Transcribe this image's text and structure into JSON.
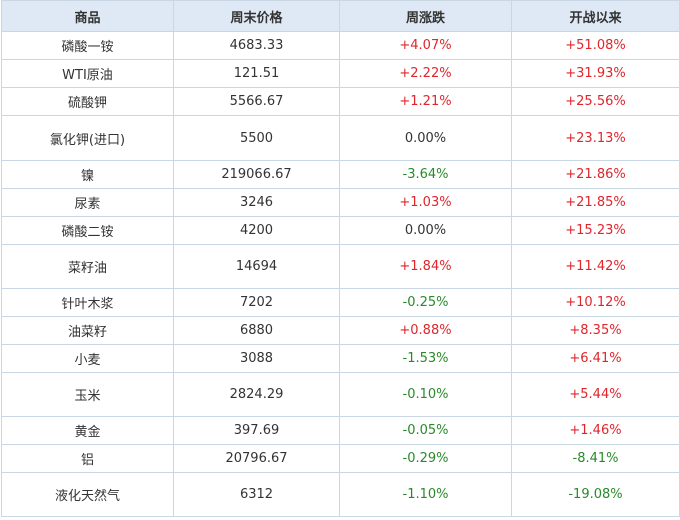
{
  "table": {
    "headers": [
      "商品",
      "周末价格",
      "周涨跌",
      "开战以来"
    ],
    "rows": [
      {
        "name": "磷酸一铵",
        "price": "4683.33",
        "week": "+4.07%",
        "since": "+51.08%"
      },
      {
        "name": "WTI原油",
        "price": "121.51",
        "week": "+2.22%",
        "since": "+31.93%"
      },
      {
        "name": "硫酸钾",
        "price": "5566.67",
        "week": "+1.21%",
        "since": "+25.56%"
      },
      {
        "name": "氯化钾(进口)",
        "price": "5500",
        "week": "0.00%",
        "since": "+23.13%"
      },
      {
        "name": "镍",
        "price": "219066.67",
        "week": "-3.64%",
        "since": "+21.86%"
      },
      {
        "name": "尿素",
        "price": "3246",
        "week": "+1.03%",
        "since": "+21.85%"
      },
      {
        "name": "磷酸二铵",
        "price": "4200",
        "week": "0.00%",
        "since": "+15.23%"
      },
      {
        "name": "菜籽油",
        "price": "14694",
        "week": "+1.84%",
        "since": "+11.42%"
      },
      {
        "name": "针叶木浆",
        "price": "7202",
        "week": "-0.25%",
        "since": "+10.12%"
      },
      {
        "name": "油菜籽",
        "price": "6880",
        "week": "+0.88%",
        "since": "+8.35%"
      },
      {
        "name": "小麦",
        "price": "3088",
        "week": "-1.53%",
        "since": "+6.41%"
      },
      {
        "name": "玉米",
        "price": "2824.29",
        "week": "-0.10%",
        "since": "+5.44%"
      },
      {
        "name": "黄金",
        "price": "397.69",
        "week": "-0.05%",
        "since": "+1.46%"
      },
      {
        "name": "铝",
        "price": "20796.67",
        "week": "-0.29%",
        "since": "-8.41%"
      },
      {
        "name": "液化天然气",
        "price": "6312",
        "week": "-1.10%",
        "since": "-19.08%"
      }
    ]
  },
  "colors": {
    "header_bg": "#dfe9f5",
    "border": "#c9d6e3",
    "rise": "#e0252b",
    "fall": "#2a8a2a"
  }
}
